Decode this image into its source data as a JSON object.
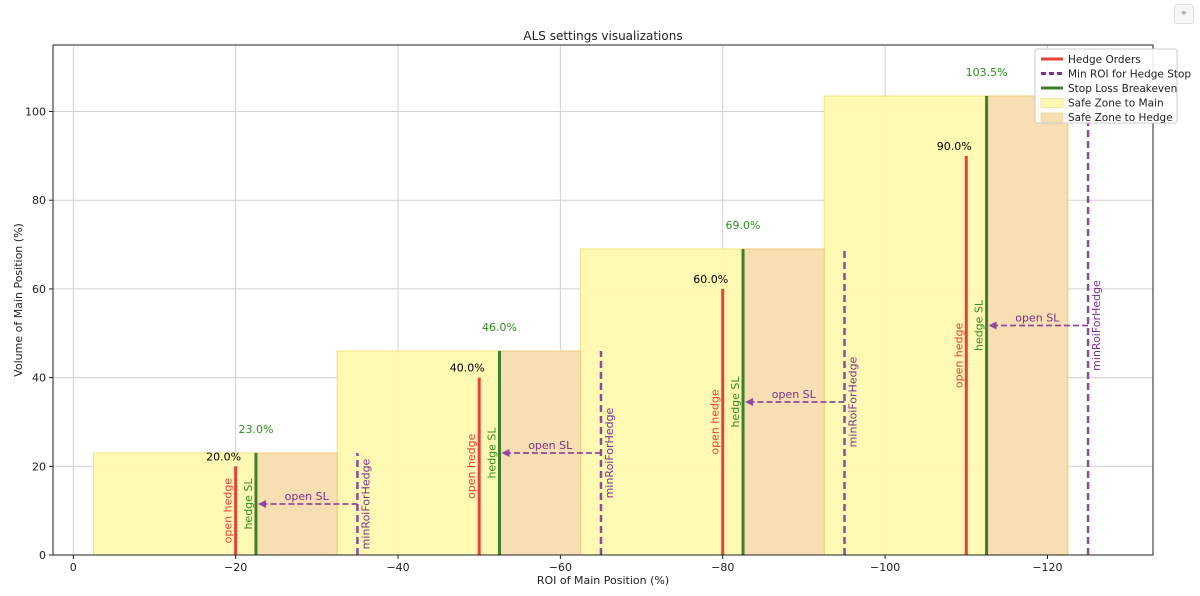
{
  "chart_data": {
    "type": "bar",
    "title": "ALS settings visualizations",
    "xlabel": "ROI of Main Position (%)",
    "ylabel": "Volume of Main Position (%)",
    "xlim": [
      2.5,
      -133
    ],
    "ylim": [
      0,
      115
    ],
    "x_ticks": [
      0,
      -20,
      -40,
      -60,
      -80,
      -100,
      -120
    ],
    "y_ticks": [
      0,
      20,
      40,
      60,
      80,
      100
    ],
    "grid": true,
    "legend_position": "top-right",
    "legend": [
      {
        "label": "Hedge Orders",
        "style": "solid",
        "color": "#e8403a"
      },
      {
        "label": "Min ROI for Hedge Stop",
        "style": "dashed",
        "color": "#7b2f8f"
      },
      {
        "label": "Stop Loss Breakeven",
        "style": "solid",
        "color": "#3d7f2a"
      },
      {
        "label": "Safe Zone to Main",
        "style": "fill",
        "color": "#fff9b0"
      },
      {
        "label": "Safe Zone to Hedge",
        "style": "fill",
        "color": "#f7dfb3"
      }
    ],
    "labels": {
      "open_hedge": "open hedge",
      "hedge_sl": "hedge SL",
      "open_sl": "open SL",
      "min_roi": "minRoiForHedge"
    },
    "series": [
      {
        "main_zone": [
          -2.5,
          -32.5
        ],
        "hedge_zone": [
          -22.5,
          -32.5
        ],
        "hedge_roi": -20,
        "hedge_volume": 20,
        "hedge_label": "20.0%",
        "sl_roi": -22.5,
        "sl_volume": 23,
        "sl_label": "23.0%",
        "min_roi": -35
      },
      {
        "main_zone": [
          -32.5,
          -62.5
        ],
        "hedge_zone": [
          -52.5,
          -62.5
        ],
        "hedge_roi": -50,
        "hedge_volume": 40,
        "hedge_label": "40.0%",
        "sl_roi": -52.5,
        "sl_volume": 46,
        "sl_label": "46.0%",
        "min_roi": -65
      },
      {
        "main_zone": [
          -62.5,
          -92.5
        ],
        "hedge_zone": [
          -82.5,
          -92.5
        ],
        "hedge_roi": -80,
        "hedge_volume": 60,
        "hedge_label": "60.0%",
        "sl_roi": -82.5,
        "sl_volume": 69,
        "sl_label": "69.0%",
        "min_roi": -95
      },
      {
        "main_zone": [
          -92.5,
          -122.5
        ],
        "hedge_zone": [
          -112.5,
          -122.5
        ],
        "hedge_roi": -110,
        "hedge_volume": 90,
        "hedge_label": "90.0%",
        "sl_roi": -112.5,
        "sl_volume": 103.5,
        "sl_label": "103.5%",
        "min_roi": -125
      }
    ]
  }
}
